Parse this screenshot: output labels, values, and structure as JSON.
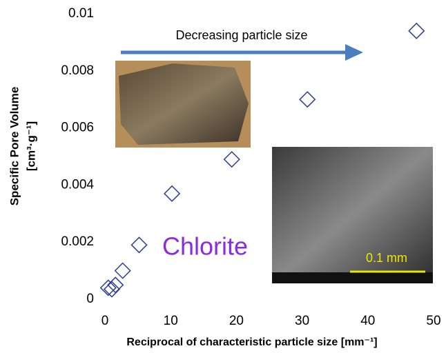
{
  "chart_data": {
    "type": "scatter",
    "x_label": "Reciprocal of characteristic particle size [mm⁻¹]",
    "y_label_line1": "Specific Pore Volume",
    "y_label_line2": "[cm³·g⁻¹]",
    "annotations": [
      "Decreasing particle size",
      "Chlorite",
      "0.1 mm"
    ],
    "x": [
      0.5,
      1.05,
      1.6,
      2.7,
      5.2,
      10.2,
      19.3,
      30.8,
      47.4
    ],
    "series": [
      {
        "name": "Chlorite",
        "color": "#2e3d8f",
        "values": [
          0.0004,
          0.00035,
          0.0005,
          0.001,
          0.0019,
          0.0037,
          0.0049,
          0.007,
          0.0094
        ]
      }
    ],
    "xlim": [
      0,
      50
    ],
    "xticks": [
      0,
      10,
      20,
      30,
      40,
      50
    ],
    "ylim": [
      0,
      0.01
    ],
    "yticks": [
      0,
      0.002,
      0.004,
      0.006,
      0.008,
      0.01
    ],
    "grid": false
  }
}
